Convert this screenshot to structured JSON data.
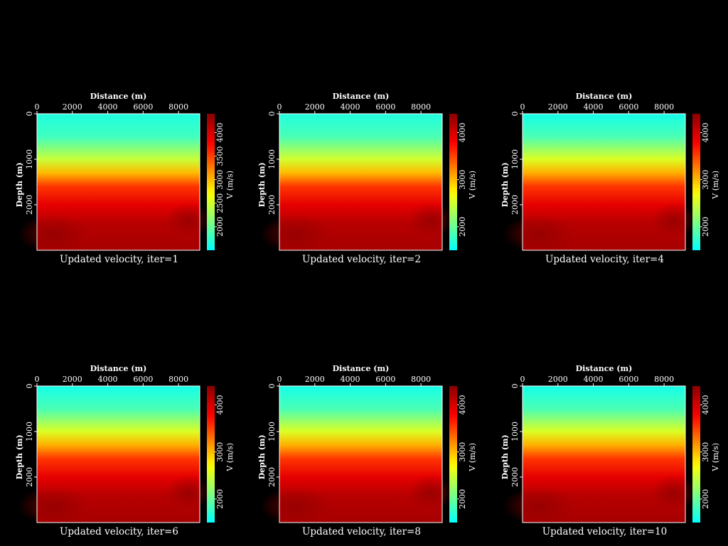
{
  "chart_data": [
    {
      "type": "heatmap",
      "title": "Updated velocity, iter=1",
      "xlabel": "Distance (m)",
      "ylabel": "Depth (m)",
      "x_range": [
        0,
        9200
      ],
      "y_range": [
        0,
        3000
      ],
      "x_ticks": [
        0,
        2000,
        4000,
        6000,
        8000
      ],
      "y_ticks": [
        0,
        1000,
        2000
      ],
      "colorbar": {
        "label": "V (m/s)",
        "range": [
          1500,
          4400
        ],
        "ticks": [
          2000,
          2500,
          3000,
          3500,
          4000
        ]
      },
      "velocity_profile": {
        "depth": [
          0,
          500,
          1000,
          1300,
          1600,
          2000,
          2400,
          3000
        ],
        "velocity": [
          1650,
          1800,
          2450,
          3000,
          3550,
          3900,
          4150,
          4250
        ]
      }
    },
    {
      "type": "heatmap",
      "title": "Updated velocity, iter=2",
      "xlabel": "Distance (m)",
      "ylabel": "Depth (m)",
      "x_range": [
        0,
        9200
      ],
      "y_range": [
        0,
        3000
      ],
      "x_ticks": [
        0,
        2000,
        4000,
        6000,
        8000
      ],
      "y_ticks": [
        0,
        1000,
        2000
      ],
      "colorbar": {
        "label": "V (m/s)",
        "range": [
          1500,
          4400
        ],
        "ticks": [
          2000,
          3000,
          4000
        ]
      },
      "velocity_profile": {
        "depth": [
          0,
          500,
          1000,
          1300,
          1600,
          2000,
          2400,
          3000
        ],
        "velocity": [
          1650,
          1850,
          2500,
          3000,
          3550,
          3900,
          4150,
          4250
        ]
      }
    },
    {
      "type": "heatmap",
      "title": "Updated velocity, iter=4",
      "xlabel": "Distance (m)",
      "ylabel": "Depth (m)",
      "x_range": [
        0,
        9200
      ],
      "y_range": [
        0,
        3000
      ],
      "x_ticks": [
        0,
        2000,
        4000,
        6000,
        8000
      ],
      "y_ticks": [
        0,
        1000,
        2000
      ],
      "colorbar": {
        "label": "V (m/s)",
        "range": [
          1500,
          4400
        ],
        "ticks": [
          2000,
          3000,
          4000
        ]
      },
      "velocity_profile": {
        "depth": [
          0,
          500,
          1000,
          1300,
          1600,
          2000,
          2400,
          3000
        ],
        "velocity": [
          1600,
          1850,
          2550,
          3050,
          3550,
          3900,
          4150,
          4250
        ]
      }
    },
    {
      "type": "heatmap",
      "title": "Updated velocity, iter=6",
      "xlabel": "Distance (m)",
      "ylabel": "Depth (m)",
      "x_range": [
        0,
        9200
      ],
      "y_range": [
        0,
        3000
      ],
      "x_ticks": [
        0,
        2000,
        4000,
        6000,
        8000
      ],
      "y_ticks": [
        0,
        1000,
        2000
      ],
      "colorbar": {
        "label": "V (m/s)",
        "range": [
          1500,
          4400
        ],
        "ticks": [
          2000,
          3000,
          4000
        ]
      },
      "velocity_profile": {
        "depth": [
          0,
          500,
          1000,
          1300,
          1600,
          2000,
          2400,
          3000
        ],
        "velocity": [
          1600,
          1850,
          2550,
          3050,
          3550,
          3900,
          4150,
          4250
        ]
      }
    },
    {
      "type": "heatmap",
      "title": "Updated velocity, iter=8",
      "xlabel": "Distance (m)",
      "ylabel": "Depth (m)",
      "x_range": [
        0,
        9200
      ],
      "y_range": [
        0,
        3000
      ],
      "x_ticks": [
        0,
        2000,
        4000,
        6000,
        8000
      ],
      "y_ticks": [
        0,
        1000,
        2000
      ],
      "colorbar": {
        "label": "V (m/s)",
        "range": [
          1500,
          4400
        ],
        "ticks": [
          2000,
          3000,
          4000
        ]
      },
      "velocity_profile": {
        "depth": [
          0,
          500,
          1000,
          1300,
          1600,
          2000,
          2400,
          3000
        ],
        "velocity": [
          1600,
          1850,
          2550,
          3050,
          3550,
          3900,
          4150,
          4250
        ]
      }
    },
    {
      "type": "heatmap",
      "title": "Updated velocity, iter=10",
      "xlabel": "Distance (m)",
      "ylabel": "Depth (m)",
      "x_range": [
        0,
        9200
      ],
      "y_range": [
        0,
        3000
      ],
      "x_ticks": [
        0,
        2000,
        4000,
        6000,
        8000
      ],
      "y_ticks": [
        0,
        1000,
        2000
      ],
      "colorbar": {
        "label": "V (m/s)",
        "range": [
          1500,
          4400
        ],
        "ticks": [
          2000,
          3000,
          4000
        ]
      },
      "velocity_profile": {
        "depth": [
          0,
          500,
          1000,
          1300,
          1600,
          2000,
          2400,
          3000
        ],
        "velocity": [
          1600,
          1850,
          2550,
          3050,
          3550,
          3900,
          4150,
          4250
        ]
      }
    }
  ],
  "colormap": [
    "#00ffff",
    "#ffff00",
    "#ff0000",
    "#8b0000"
  ]
}
